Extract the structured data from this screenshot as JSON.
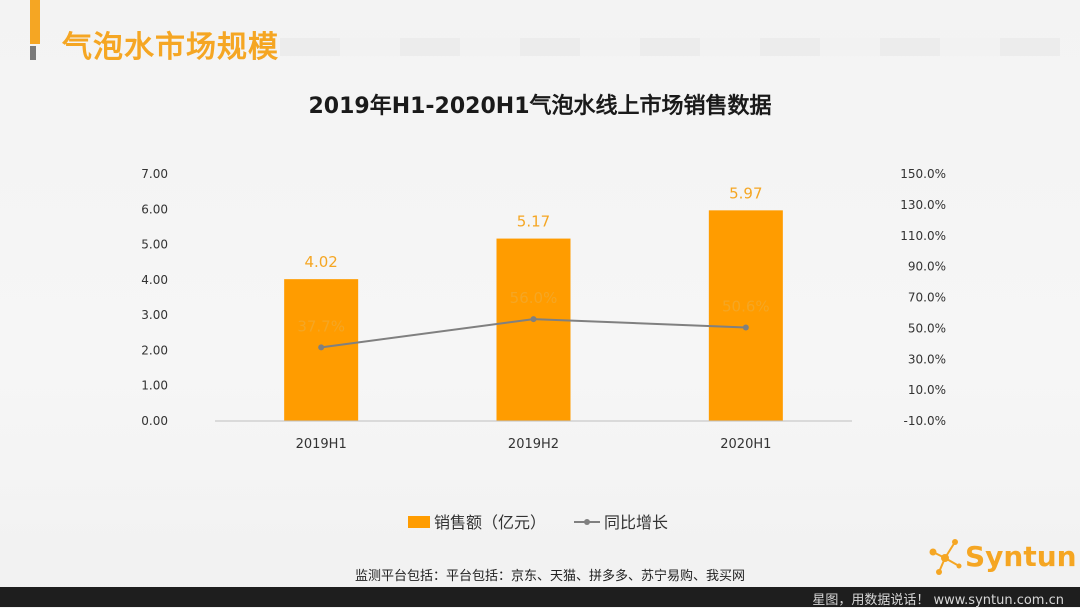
{
  "slide": {
    "title": "气泡水市场规模",
    "footnote": "监测平台包括：平台包括：京东、天猫、拼多多、苏宁易购、我买网",
    "footer": "星图，用数据说话！ www.syntun.com.cn",
    "logo_text": "Syntun"
  },
  "colors": {
    "accent": "#f5a623",
    "bar": "#ff9c00",
    "line": "#808080",
    "label": "#f5a623"
  },
  "chart_data": {
    "type": "bar",
    "title": "2019年H1-2020H1气泡水线上市场销售数据",
    "categories": [
      "2019H1",
      "2019H2",
      "2020H1"
    ],
    "series": [
      {
        "name": "销售额（亿元）",
        "type": "bar",
        "axis": "left",
        "values": [
          4.02,
          5.17,
          5.97
        ],
        "labels": [
          "4.02",
          "5.17",
          "5.97"
        ]
      },
      {
        "name": "同比增长",
        "type": "line",
        "axis": "right",
        "values": [
          37.7,
          56.0,
          50.6
        ],
        "labels": [
          "37.7%",
          "56.0%",
          "50.6%"
        ]
      }
    ],
    "y_left": {
      "min": 0,
      "max": 7,
      "ticks": [
        "0.00",
        "1.00",
        "2.00",
        "3.00",
        "4.00",
        "5.00",
        "6.00",
        "7.00"
      ]
    },
    "y_right": {
      "min": -10,
      "max": 150,
      "ticks": [
        "-10.0%",
        "10.0%",
        "30.0%",
        "50.0%",
        "70.0%",
        "90.0%",
        "110.0%",
        "130.0%",
        "150.0%"
      ]
    },
    "legend": "bottom",
    "grid": false
  }
}
